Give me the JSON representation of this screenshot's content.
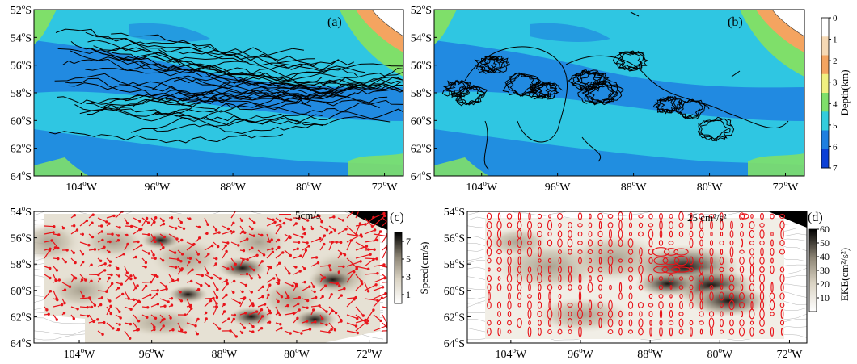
{
  "figure": {
    "panels": [
      {
        "id": "a",
        "label": "(a)",
        "x_ticks": [
          "104°W",
          "96°W",
          "88°W",
          "80°W",
          "72°W"
        ],
        "y_ticks": [
          "52°S",
          "54°S",
          "56°S",
          "58°S",
          "60°S",
          "62°S",
          "64°S"
        ],
        "lon_range": [
          -109,
          -70
        ],
        "lat_range": [
          -64,
          -52
        ],
        "content": "drifter trajectories over bathymetry"
      },
      {
        "id": "b",
        "label": "(b)",
        "x_ticks": [
          "104°W",
          "96°W",
          "88°W",
          "80°W",
          "72°W"
        ],
        "y_ticks": [
          "52°S",
          "54°S",
          "56°S",
          "58°S",
          "60°S",
          "62°S",
          "64°S"
        ],
        "lon_range": [
          -109,
          -70
        ],
        "lat_range": [
          -64,
          -52
        ],
        "content": "looping drifter trajectories over bathymetry"
      },
      {
        "id": "c",
        "label": "(c)",
        "x_ticks": [
          "104°W",
          "96°W",
          "88°W",
          "80°W",
          "72°W"
        ],
        "y_ticks": [
          "54°S",
          "56°S",
          "58°S",
          "60°S",
          "62°S",
          "64°S"
        ],
        "lon_range": [
          -109,
          -70
        ],
        "lat_range": [
          -64,
          -54
        ],
        "scale_label": "5cm/s",
        "colorbar": {
          "label": "Speed(cm/s)",
          "ticks": [
            "7",
            "5",
            "3",
            "1"
          ],
          "range": [
            0,
            8
          ]
        }
      },
      {
        "id": "d",
        "label": "(d)",
        "x_ticks": [
          "104°W",
          "96°W",
          "88°W",
          "80°W",
          "72°W"
        ],
        "y_ticks": [
          "54°S",
          "56°S",
          "58°S",
          "60°S",
          "62°S",
          "64°S"
        ],
        "lon_range": [
          -109,
          -70
        ],
        "lat_range": [
          -64,
          -54
        ],
        "scale_label": "25 cm²/s²",
        "colorbar": {
          "label": "EKE(cm²/s²)",
          "ticks": [
            "60",
            "50",
            "40",
            "30",
            "20",
            "10"
          ],
          "range": [
            0,
            60
          ]
        }
      }
    ],
    "depth_colorbar": {
      "label": "Depth(km)",
      "ticks": [
        "0",
        "1",
        "2",
        "3",
        "4",
        "5",
        "6",
        "7"
      ],
      "colors": [
        "#ffffff",
        "#f6d9b4",
        "#f4a460",
        "#f0f080",
        "#7fdf6a",
        "#33ccdd",
        "#1e7fe0",
        "#0b3fd6"
      ]
    }
  },
  "chart_data": [
    {
      "type": "scatter",
      "panel": "a",
      "xlabel": "",
      "ylabel": "",
      "xlim": [
        -109,
        -70
      ],
      "ylim": [
        -64,
        -52
      ],
      "note": "trajectory map (qualitative)"
    },
    {
      "type": "scatter",
      "panel": "b",
      "xlabel": "",
      "ylabel": "",
      "xlim": [
        -109,
        -70
      ],
      "ylim": [
        -64,
        -52
      ],
      "note": "trajectory map (qualitative)"
    },
    {
      "type": "heatmap",
      "panel": "c",
      "xlim": [
        -109,
        -70
      ],
      "ylim": [
        -64,
        -54
      ],
      "colorbar_label": "Speed(cm/s)",
      "colorbar_ticks": [
        7,
        5,
        3,
        1
      ],
      "vector_scale": "5cm/s",
      "hotspots": [
        {
          "lon": -86,
          "lat": -58.3,
          "value": 7
        },
        {
          "lon": -76,
          "lat": -59.2,
          "value": 7
        },
        {
          "lon": -85,
          "lat": -62.0,
          "value": 6
        },
        {
          "lon": -78,
          "lat": -62.2,
          "value": 6
        },
        {
          "lon": -95,
          "lat": -56.2,
          "value": 5
        },
        {
          "lon": -92,
          "lat": -60.3,
          "value": 5
        }
      ]
    },
    {
      "type": "heatmap",
      "panel": "d",
      "xlim": [
        -109,
        -70
      ],
      "ylim": [
        -64,
        -54
      ],
      "colorbar_label": "EKE(cm²/s²)",
      "colorbar_ticks": [
        60,
        50,
        40,
        30,
        20,
        10
      ],
      "ellipse_scale": "25 cm²/s²",
      "hotspots": [
        {
          "lon": -84,
          "lat": -58.2,
          "value": 60
        },
        {
          "lon": -81,
          "lat": -59.6,
          "value": 45
        },
        {
          "lon": -79,
          "lat": -60.8,
          "value": 40
        },
        {
          "lon": -86,
          "lat": -59.5,
          "value": 30
        }
      ]
    }
  ]
}
